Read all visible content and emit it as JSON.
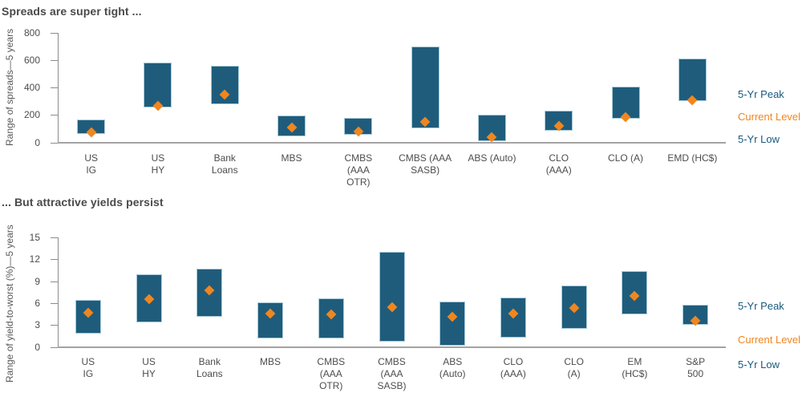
{
  "colors": {
    "bar_fill": "#1F5C7B",
    "bar_border": "#A8CADA",
    "current_marker": "#F0861F",
    "legend_blue": "#17597F",
    "legend_orange": "#F0861F",
    "title_text": "#4A4A4A",
    "axis_text": "#4D4D4D",
    "axis_line": "#A3A3A3"
  },
  "legend": {
    "peak": "5-Yr Peak",
    "current": "Current Level",
    "low": "5-Yr Low"
  },
  "chart_data": [
    {
      "type": "bar",
      "subtype": "floating-range",
      "title": "Spreads are super tight ...",
      "xlabel": "",
      "ylabel": "Range of spreads—5 years",
      "ylim": [
        0,
        800
      ],
      "yticks": [
        0,
        200,
        400,
        600,
        800
      ],
      "grid": false,
      "legend_position": "right",
      "legend_entries": [
        "5-Yr Peak",
        "Current Level",
        "5-Yr Low"
      ],
      "categories": [
        "US\nIG",
        "US\nHY",
        "Bank\nLoans",
        "MBS",
        "CMBS\n(AAA\nOTR)",
        "CMBS (AAA\nSASB)",
        "ABS (Auto)",
        "CLO\n(AAA)",
        "CLO (A)",
        "EMD (HC$)"
      ],
      "series": [
        {
          "name": "5-Yr Low",
          "values": [
            60,
            255,
            280,
            45,
            55,
            100,
            10,
            85,
            170,
            300
          ]
        },
        {
          "name": "5-Yr Peak",
          "values": [
            165,
            585,
            560,
            195,
            180,
            700,
            205,
            230,
            405,
            610
          ]
        },
        {
          "name": "Current Level",
          "values": [
            75,
            265,
            350,
            110,
            80,
            150,
            40,
            120,
            185,
            305
          ]
        }
      ]
    },
    {
      "type": "bar",
      "subtype": "floating-range",
      "title": "... But attractive yields persist",
      "xlabel": "",
      "ylabel": "Range of yield-to-worst (%)—5 years",
      "ylim": [
        0,
        15
      ],
      "yticks": [
        0,
        3,
        6,
        9,
        12,
        15
      ],
      "grid": false,
      "legend_position": "right",
      "legend_entries": [
        "5-Yr Peak",
        "Current Level",
        "5-Yr Low"
      ],
      "categories": [
        "US\nIG",
        "US\nHY",
        "Bank\nLoans",
        "MBS",
        "CMBS\n(AAA\nOTR)",
        "CMBS\n(AAA\nSASB)",
        "ABS\n(Auto)",
        "CLO\n(AAA)",
        "CLO\n(A)",
        "EM\n(HC$)",
        "S&P\n500"
      ],
      "series": [
        {
          "name": "5-Yr Low",
          "values": [
            1.8,
            3.4,
            4.1,
            1.1,
            1.1,
            0.7,
            0.2,
            1.3,
            2.5,
            4.5,
            3.0
          ]
        },
        {
          "name": "5-Yr Peak",
          "values": [
            6.4,
            9.9,
            10.7,
            6.1,
            6.6,
            13.0,
            6.2,
            6.8,
            8.4,
            10.4,
            5.8
          ]
        },
        {
          "name": "Current Level",
          "values": [
            4.7,
            6.5,
            7.7,
            4.6,
            4.4,
            5.4,
            4.1,
            4.6,
            5.3,
            7.0,
            3.6
          ]
        }
      ]
    }
  ]
}
